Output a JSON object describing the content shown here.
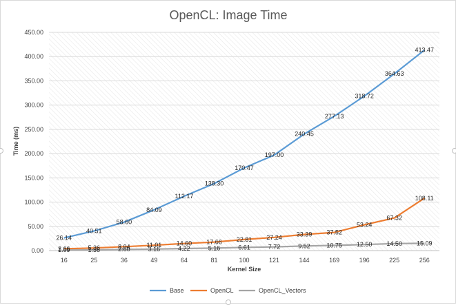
{
  "chart_data": {
    "type": "line",
    "title": "OpenCL: Image Time",
    "xlabel": "Kernel Size",
    "ylabel": "Time (ms)",
    "categories": [
      "16",
      "25",
      "36",
      "49",
      "64",
      "81",
      "100",
      "121",
      "144",
      "169",
      "196",
      "225",
      "256"
    ],
    "ylim": [
      0,
      450
    ],
    "yticks": [
      "0.00",
      "50.00",
      "100.00",
      "150.00",
      "200.00",
      "250.00",
      "300.00",
      "350.00",
      "400.00",
      "450.00"
    ],
    "grid": true,
    "legend_position": "bottom",
    "series": [
      {
        "name": "Base",
        "color": "#5b9bd5",
        "values": [
          26.14,
          40.51,
          58.6,
          84.09,
          112.17,
          138.3,
          170.47,
          197.0,
          240.45,
          277.13,
          318.72,
          364.63,
          413.47
        ],
        "labels": [
          "26.14",
          "40.51",
          "58.60",
          "84.09",
          "112.17",
          "138.30",
          "170.47",
          "197.00",
          "240.45",
          "277.13",
          "318.72",
          "364.63",
          "413.47"
        ]
      },
      {
        "name": "OpenCL",
        "color": "#ed7d31",
        "values": [
          3.66,
          5.36,
          8.04,
          11.01,
          14.6,
          17.66,
          22.81,
          27.24,
          33.39,
          37.52,
          53.24,
          67.32,
          108.11
        ],
        "labels": [
          "3.66",
          "5.36",
          "8.04",
          "11.01",
          "14.60",
          "17.66",
          "22.81",
          "27.24",
          "33.39",
          "37.52",
          "53.24",
          "67.32",
          "108.11"
        ]
      },
      {
        "name": "OpenCL_Vectors",
        "color": "#a5a5a5",
        "values": [
          1.09,
          1.36,
          2.6,
          3.16,
          4.22,
          5.16,
          6.61,
          7.72,
          9.52,
          10.75,
          12.5,
          14.5,
          15.09
        ],
        "labels": [
          "1.09",
          "1.36",
          "2.60",
          "3.16",
          "4.22",
          "5.16",
          "6.61",
          "7.72",
          "9.52",
          "10.75",
          "12.50",
          "14.50",
          "15.09"
        ]
      }
    ]
  }
}
